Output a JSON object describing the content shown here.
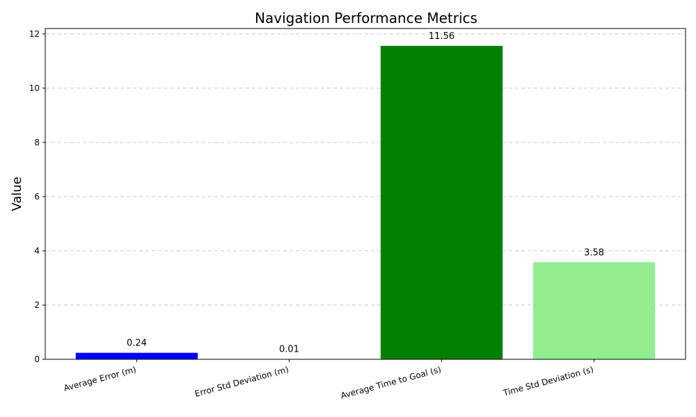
{
  "chart_data": {
    "type": "bar",
    "title": "Navigation Performance Metrics",
    "xlabel": "",
    "ylabel": "Value",
    "categories": [
      "Average Error (m)",
      "Error Std Deviation (m)",
      "Average Time to Goal (s)",
      "Time Std Deviation (s)"
    ],
    "values": [
      0.24,
      0.01,
      11.56,
      3.58
    ],
    "data_labels": [
      "0.24",
      "0.01",
      "11.56",
      "3.58"
    ],
    "colors": [
      "#0000ff",
      "#0000ff",
      "#008000",
      "#90ee90"
    ],
    "ylim": [
      0,
      12.2
    ],
    "yticks": [
      0,
      2,
      4,
      6,
      8,
      10,
      12
    ],
    "grid": "y-dashed",
    "legend": "none"
  }
}
